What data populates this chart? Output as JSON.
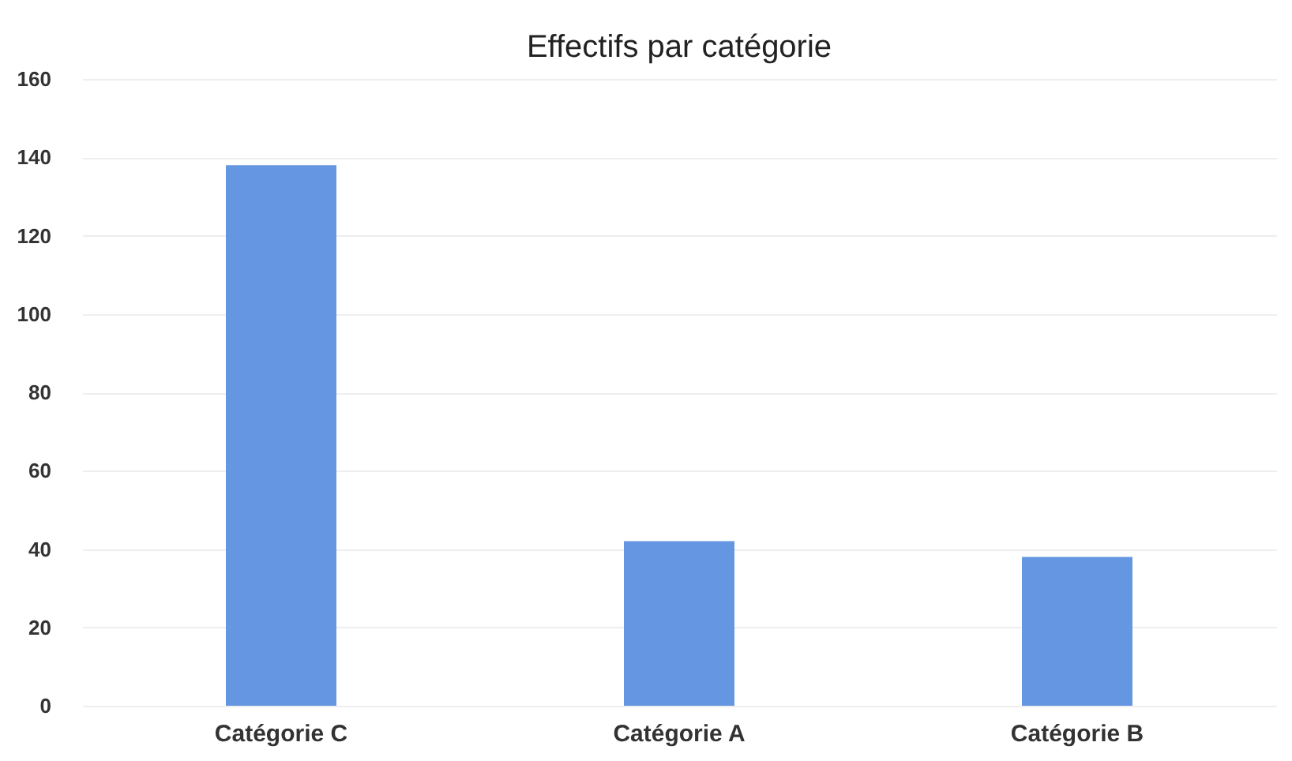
{
  "chart_data": {
    "type": "bar",
    "title": "Effectifs par catégorie",
    "categories": [
      "Catégorie C",
      "Catégorie A",
      "Catégorie B"
    ],
    "values": [
      138,
      42,
      38
    ],
    "color": "#6596e2",
    "ylim": [
      0,
      160
    ],
    "yticks": [
      0,
      20,
      40,
      60,
      80,
      100,
      120,
      140,
      160
    ],
    "grid": "y"
  }
}
